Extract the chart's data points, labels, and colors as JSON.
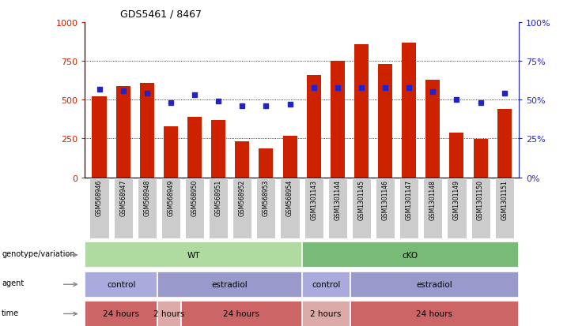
{
  "title": "GDS5461 / 8467",
  "samples": [
    "GSM568946",
    "GSM568947",
    "GSM568948",
    "GSM568949",
    "GSM568950",
    "GSM568951",
    "GSM568952",
    "GSM568953",
    "GSM568954",
    "GSM1301143",
    "GSM1301144",
    "GSM1301145",
    "GSM1301146",
    "GSM1301147",
    "GSM1301148",
    "GSM1301149",
    "GSM1301150",
    "GSM1301151"
  ],
  "counts": [
    520,
    590,
    610,
    330,
    390,
    370,
    230,
    185,
    270,
    660,
    750,
    860,
    730,
    870,
    630,
    290,
    245,
    440
  ],
  "percentiles": [
    57,
    56,
    54,
    48,
    53,
    49,
    46,
    46,
    47,
    58,
    58,
    58,
    58,
    58,
    55,
    50,
    48,
    54
  ],
  "bar_color": "#cc2200",
  "dot_color": "#2222cc",
  "ylim_left": [
    0,
    1000
  ],
  "ylim_right": [
    0,
    100
  ],
  "yticks_left": [
    0,
    250,
    500,
    750,
    1000
  ],
  "yticks_right": [
    0,
    25,
    50,
    75,
    100
  ],
  "grid_values": [
    250,
    500,
    750
  ],
  "background_color": "#ffffff",
  "label_bg_color": "#cccccc",
  "genotype_row": {
    "label": "genotype/variation",
    "groups": [
      {
        "text": "WT",
        "start": 0,
        "end": 8,
        "color": "#b0dba0"
      },
      {
        "text": "cKO",
        "start": 9,
        "end": 17,
        "color": "#77bb77"
      }
    ]
  },
  "agent_row": {
    "label": "agent",
    "groups": [
      {
        "text": "control",
        "start": 0,
        "end": 2,
        "color": "#aaaadd"
      },
      {
        "text": "estradiol",
        "start": 3,
        "end": 8,
        "color": "#9999cc"
      },
      {
        "text": "control",
        "start": 9,
        "end": 10,
        "color": "#aaaadd"
      },
      {
        "text": "estradiol",
        "start": 11,
        "end": 17,
        "color": "#9999cc"
      }
    ]
  },
  "time_row": {
    "label": "time",
    "groups": [
      {
        "text": "24 hours",
        "start": 0,
        "end": 2,
        "color": "#cc6666"
      },
      {
        "text": "2 hours",
        "start": 3,
        "end": 3,
        "color": "#ddaaaa"
      },
      {
        "text": "24 hours",
        "start": 4,
        "end": 8,
        "color": "#cc6666"
      },
      {
        "text": "2 hours",
        "start": 9,
        "end": 10,
        "color": "#ddaaaa"
      },
      {
        "text": "24 hours",
        "start": 11,
        "end": 17,
        "color": "#cc6666"
      }
    ]
  },
  "legend_count_color": "#cc2200",
  "legend_dot_color": "#2222cc",
  "arrow_color": "#888888"
}
